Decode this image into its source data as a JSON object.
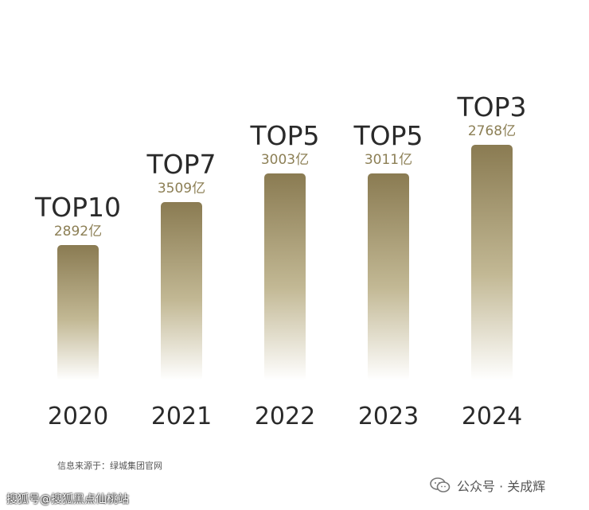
{
  "chart_data": {
    "type": "bar",
    "categories": [
      "2020",
      "2021",
      "2022",
      "2023",
      "2024"
    ],
    "values": [
      2892,
      3509,
      3003,
      3011,
      2768
    ],
    "value_labels": [
      "2892亿",
      "3509亿",
      "3003亿",
      "3011亿",
      "2768亿"
    ],
    "rank_labels": [
      "TOP10",
      "TOP7",
      "TOP5",
      "TOP5",
      "TOP3"
    ],
    "ranks": [
      10,
      7,
      5,
      5,
      3
    ],
    "title": "",
    "xlabel": "",
    "ylabel": "",
    "grid": false,
    "colors": {
      "bar_top": "#8a7b52",
      "bar_bottom": "#ffffff",
      "value_text": "#8c7f55",
      "text": "#2a2a2a"
    }
  },
  "footer": {
    "source": "信息来源于：绿城集团官网",
    "watermark": "搜狐号@搜狐黑点仙桃站",
    "account": "公众号 · 关成辉",
    "account_icon": "wechat-icon"
  }
}
